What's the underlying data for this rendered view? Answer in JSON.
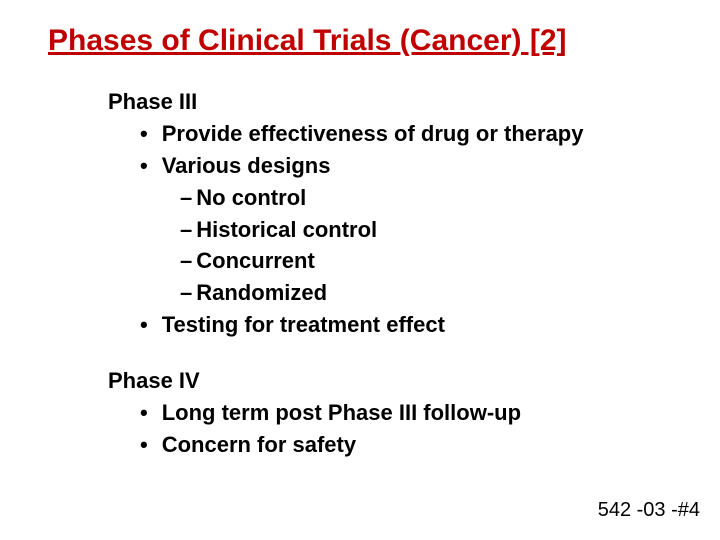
{
  "title": {
    "text": "Phases of Clinical Trials (Cancer) [2]",
    "color": "#c00000",
    "fontsize": 30
  },
  "body_fontsize": 22,
  "phases": [
    {
      "heading": "Phase III",
      "bullets": [
        {
          "text": "Provide effectiveness of drug or therapy",
          "children": []
        },
        {
          "text": "Various designs",
          "children": [
            {
              "text": "No control"
            },
            {
              "text": "Historical control"
            },
            {
              "text": "Concurrent"
            },
            {
              "text": "Randomized"
            }
          ]
        },
        {
          "text": "Testing for treatment effect",
          "children": []
        }
      ]
    },
    {
      "heading": "Phase IV",
      "bullets": [
        {
          "text": "Long term post Phase III follow-up",
          "children": []
        },
        {
          "text": "Concern for safety",
          "children": []
        }
      ]
    }
  ],
  "footer": "542 -03 -#4",
  "colors": {
    "background": "#ffffff",
    "text": "#000000",
    "title": "#c00000"
  },
  "bullets": {
    "level1_marker": "•",
    "level2_marker": "–"
  }
}
